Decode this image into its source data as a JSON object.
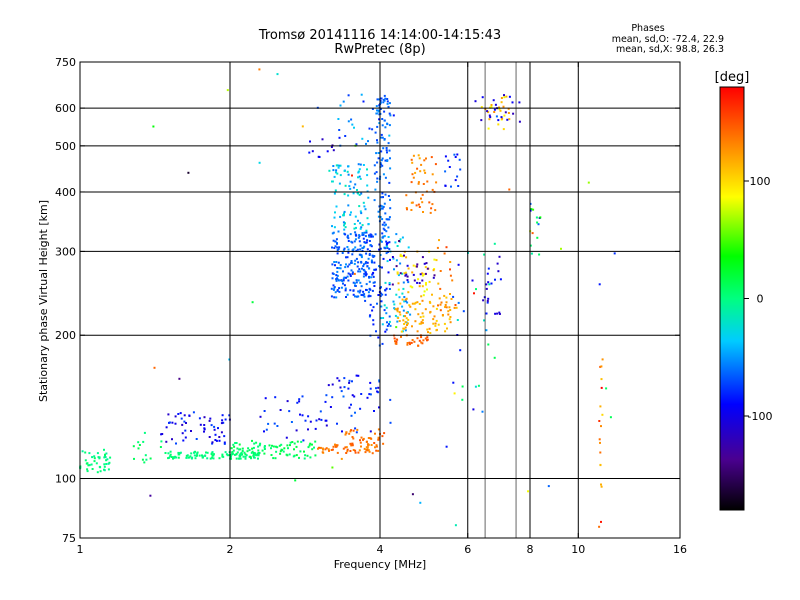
{
  "chart_data": {
    "type": "scatter",
    "title": "Tromsø 20141116 14:14:00-14:15:43",
    "subtitle": "RwPretec (8p)",
    "xlabel": "Frequency [MHz]",
    "ylabel": "Stationary phase Virtual Height [km]",
    "x_scale": "log",
    "y_scale": "log",
    "xlim": [
      1,
      16
    ],
    "ylim": [
      75,
      750
    ],
    "x_ticks": [
      1,
      2,
      4,
      6,
      8,
      10,
      16
    ],
    "x_tick_labels": [
      "1",
      "2",
      "4",
      "6",
      "8",
      "10",
      "16"
    ],
    "x_grid": [
      2,
      4,
      6,
      8,
      10
    ],
    "x_grid_minor": [
      6.5,
      7.5
    ],
    "y_ticks": [
      75,
      100,
      200,
      300,
      400,
      500,
      600,
      750
    ],
    "y_tick_labels": [
      "75",
      "100",
      "200",
      "300",
      "400",
      "500",
      "600",
      "750"
    ],
    "y_grid": [
      100,
      200,
      300,
      400,
      500,
      600
    ],
    "grid": true,
    "phases_info": {
      "title": "Phases",
      "line1": "mean, sd,O: -72.4, 22.9",
      "line2": "mean, sd,X: 98.8, 26.3"
    },
    "colorbar": {
      "label": "[deg]",
      "range": [
        -180,
        180
      ],
      "ticks": [
        100,
        0,
        -100
      ],
      "tick_labels": [
        "100",
        "0",
        "-100"
      ],
      "colormap": "rainbow"
    },
    "clusters": [
      {
        "xr": [
          1.0,
          1.15
        ],
        "yr": [
          102,
          115
        ],
        "phase": [
          -10,
          10
        ],
        "n": 45
      },
      {
        "xr": [
          1.25,
          1.55
        ],
        "yr": [
          108,
          125
        ],
        "phase": [
          -5,
          15
        ],
        "n": 15
      },
      {
        "xr": [
          1.5,
          2.3
        ],
        "yr": [
          110,
          114
        ],
        "phase": [
          -5,
          10
        ],
        "n": 110
      },
      {
        "xr": [
          1.45,
          2.0
        ],
        "yr": [
          118,
          138
        ],
        "phase": [
          -125,
          -70
        ],
        "n": 60
      },
      {
        "xr": [
          2.0,
          3.0
        ],
        "yr": [
          110,
          120
        ],
        "phase": [
          0,
          20
        ],
        "n": 90
      },
      {
        "xr": [
          2.3,
          3.2
        ],
        "yr": [
          120,
          150
        ],
        "phase": [
          -110,
          -60
        ],
        "n": 35
      },
      {
        "xr": [
          3.0,
          4.0
        ],
        "yr": [
          113,
          118
        ],
        "phase": [
          125,
          150
        ],
        "n": 55
      },
      {
        "xr": [
          3.4,
          4.1
        ],
        "yr": [
          118,
          127
        ],
        "phase": [
          130,
          150
        ],
        "n": 35
      },
      {
        "xr": [
          3.1,
          4.2
        ],
        "yr": [
          125,
          165
        ],
        "phase": [
          -110,
          -60
        ],
        "n": 45
      },
      {
        "xr": [
          3.2,
          3.9
        ],
        "yr": [
          240,
          330
        ],
        "phase": [
          -80,
          -50
        ],
        "n": 220
      },
      {
        "xr": [
          3.2,
          3.8
        ],
        "yr": [
          330,
          460
        ],
        "phase": [
          -60,
          -15
        ],
        "n": 90
      },
      {
        "xr": [
          3.7,
          4.2
        ],
        "yr": [
          190,
          330
        ],
        "phase": [
          -90,
          -60
        ],
        "n": 80
      },
      {
        "xr": [
          3.9,
          4.2
        ],
        "yr": [
          330,
          640
        ],
        "phase": [
          -75,
          -50
        ],
        "n": 110
      },
      {
        "xr": [
          4.0,
          4.6
        ],
        "yr": [
          200,
          330
        ],
        "phase": [
          -60,
          -20
        ],
        "n": 60
      },
      {
        "xr": [
          4.3,
          5.6
        ],
        "yr": [
          202,
          240
        ],
        "phase": [
          100,
          130
        ],
        "n": 80
      },
      {
        "xr": [
          4.2,
          5.0
        ],
        "yr": [
          190,
          200
        ],
        "phase": [
          135,
          155
        ],
        "n": 30
      },
      {
        "xr": [
          4.3,
          5.2
        ],
        "yr": [
          240,
          300
        ],
        "phase": [
          80,
          120
        ],
        "n": 40
      },
      {
        "xr": [
          4.5,
          5.2
        ],
        "yr": [
          360,
          480
        ],
        "phase": [
          115,
          150
        ],
        "n": 45
      },
      {
        "xr": [
          4.2,
          5.2
        ],
        "yr": [
          250,
          300
        ],
        "phase": [
          -140,
          -100
        ],
        "n": 25
      },
      {
        "xr": [
          5.2,
          5.7
        ],
        "yr": [
          220,
          320
        ],
        "phase": [
          110,
          160
        ],
        "n": 25
      },
      {
        "xr": [
          5.4,
          5.8
        ],
        "yr": [
          410,
          480
        ],
        "phase": [
          -100,
          -60
        ],
        "n": 15
      },
      {
        "xr": [
          6.4,
          7.3
        ],
        "yr": [
          540,
          640
        ],
        "phase": [
          80,
          130
        ],
        "n": 25
      },
      {
        "xr": [
          6.2,
          7.8
        ],
        "yr": [
          560,
          650
        ],
        "phase": [
          -120,
          -90
        ],
        "n": 20
      },
      {
        "xr": [
          6.4,
          7.0
        ],
        "yr": [
          220,
          300
        ],
        "phase": [
          -120,
          -80
        ],
        "n": 20
      },
      {
        "xr": [
          5.6,
          6.8
        ],
        "yr": [
          130,
          330
        ],
        "phase": [
          -120,
          20
        ],
        "n": 25
      },
      {
        "xr": [
          8.0,
          8.4
        ],
        "yr": [
          290,
          380
        ],
        "phase": [
          -110,
          160
        ],
        "n": 15
      },
      {
        "xr": [
          11.0,
          11.2
        ],
        "yr": [
          78,
          180
        ],
        "phase": [
          100,
          180
        ],
        "n": 18
      },
      {
        "xr": [
          3.3,
          4.3
        ],
        "yr": [
          500,
          650
        ],
        "phase": [
          -90,
          -30
        ],
        "n": 30
      },
      {
        "xr": [
          2.8,
          3.3
        ],
        "yr": [
          470,
          520
        ],
        "phase": [
          -130,
          -60
        ],
        "n": 10
      },
      {
        "xr": [
          1.3,
          13
        ],
        "yr": [
          78,
          750
        ],
        "phase": [
          -180,
          180
        ],
        "n": 40
      }
    ]
  }
}
